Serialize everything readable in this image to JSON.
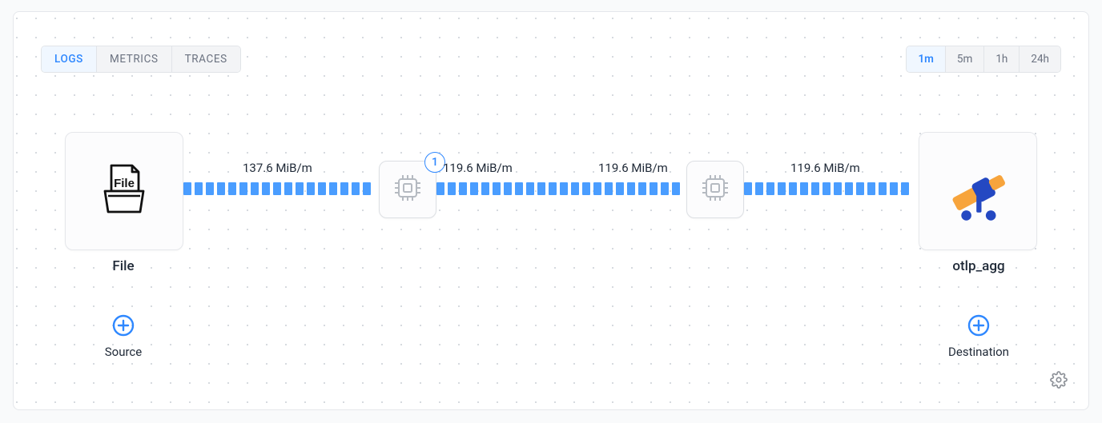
{
  "tabs": {
    "items": [
      "LOGS",
      "METRICS",
      "TRACES"
    ],
    "active_index": 0
  },
  "time_tabs": {
    "items": [
      "1m",
      "5m",
      "1h",
      "24h"
    ],
    "active_index": 0
  },
  "pipeline": {
    "source": {
      "label": "File",
      "icon": "file-icon"
    },
    "destination": {
      "label": "otlp_agg",
      "icon": "telescope-icon"
    },
    "processors": [
      {
        "icon": "cpu-icon",
        "badge": "1"
      },
      {
        "icon": "cpu-icon"
      }
    ],
    "flows": [
      {
        "label": "137.6 MiB/m"
      },
      {
        "label": "119.6 MiB/m"
      },
      {
        "label": "119.6 MiB/m"
      },
      {
        "label": "119.6 MiB/m"
      }
    ]
  },
  "add": {
    "source_label": "Source",
    "destination_label": "Destination"
  },
  "colors": {
    "flow": "#4a9dff",
    "accent": "#2f88ff",
    "orange": "#f7a43c",
    "dblue": "#2448c2"
  }
}
